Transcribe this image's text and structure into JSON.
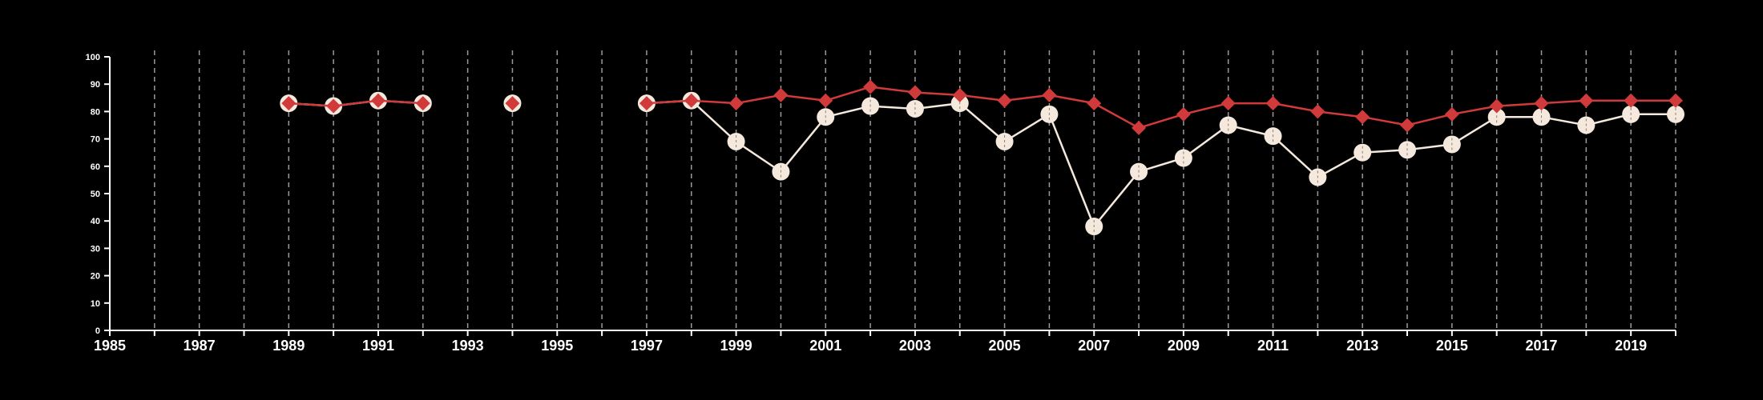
{
  "chart_data": {
    "type": "line",
    "title": "",
    "xlabel": "",
    "ylabel": "",
    "xlim": [
      1985,
      2020
    ],
    "ylim": [
      0,
      100
    ],
    "x_ticks": [
      1985,
      1987,
      1989,
      1991,
      1993,
      1995,
      1997,
      1999,
      2001,
      2003,
      2005,
      2007,
      2009,
      2011,
      2013,
      2015,
      2017,
      2019
    ],
    "y_ticks": [
      0,
      10,
      20,
      30,
      40,
      50,
      60,
      70,
      80,
      90,
      100
    ],
    "vertical_gridlines_every_year": true,
    "grid_style": "dashed",
    "legend": "none",
    "colors": {
      "background": "#000000",
      "axis": "#ffffff",
      "grid": "#9a9a9a",
      "series_red": "#d03a3a",
      "series_cream": "#f5e8dc"
    },
    "series": [
      {
        "color": "#f5e8dc",
        "marker": "circle",
        "x": [
          1989,
          1990,
          1991,
          1992,
          1994,
          1997,
          1998,
          1999,
          2000,
          2001,
          2002,
          2003,
          2004,
          2005,
          2006,
          2007,
          2008,
          2009,
          2010,
          2011,
          2012,
          2013,
          2014,
          2015,
          2016,
          2017,
          2018,
          2019,
          2020
        ],
        "values": [
          83,
          82,
          84,
          83,
          83,
          83,
          84,
          69,
          58,
          78,
          82,
          81,
          83,
          69,
          79,
          38,
          58,
          63,
          75,
          71,
          56,
          65,
          66,
          68,
          78,
          78,
          75,
          79,
          79
        ]
      },
      {
        "color": "#d03a3a",
        "marker": "diamond",
        "x": [
          1989,
          1990,
          1991,
          1992,
          1994,
          1997,
          1998,
          1999,
          2000,
          2001,
          2002,
          2003,
          2004,
          2005,
          2006,
          2007,
          2008,
          2009,
          2010,
          2011,
          2012,
          2013,
          2014,
          2015,
          2016,
          2017,
          2018,
          2019,
          2020
        ],
        "values": [
          83,
          82,
          84,
          83,
          83,
          83,
          84,
          83,
          86,
          84,
          89,
          87,
          86,
          84,
          86,
          83,
          74,
          79,
          83,
          83,
          80,
          78,
          75,
          79,
          82,
          83,
          84,
          84,
          84
        ]
      }
    ]
  }
}
